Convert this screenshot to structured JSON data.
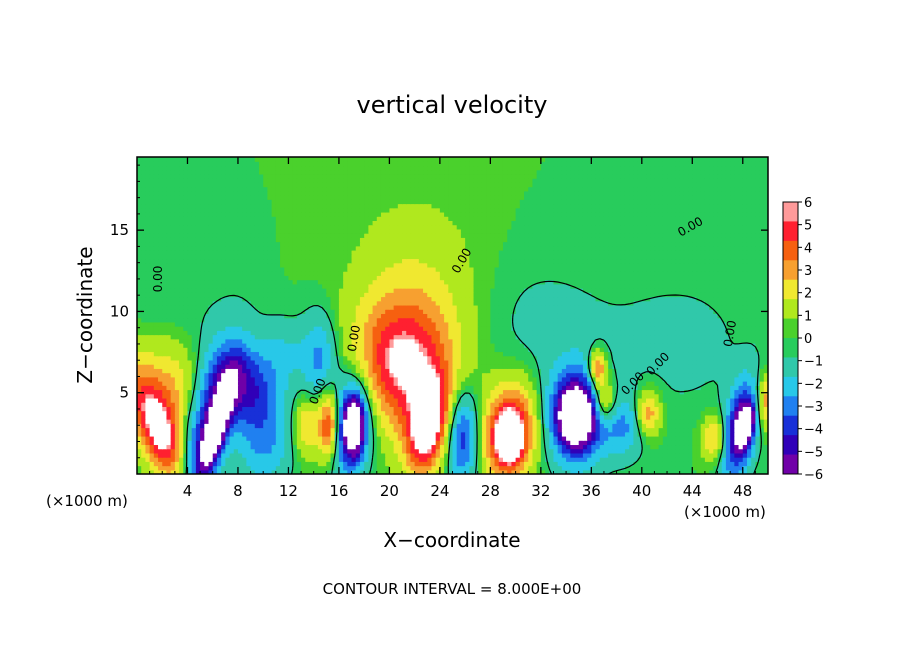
{
  "chart_data": {
    "type": "heatmap",
    "title": "vertical velocity",
    "xlabel": "X−coordinate",
    "ylabel": "Z−coordinate",
    "x_unit_left": "(×1000 m)",
    "x_unit_right": "(×1000 m)",
    "footer": "CONTOUR INTERVAL = 8.000E+00",
    "xlim": [
      0,
      50
    ],
    "ylim": [
      0,
      19.5
    ],
    "x_ticks": [
      "4",
      "8",
      "12",
      "16",
      "20",
      "24",
      "28",
      "32",
      "36",
      "40",
      "44",
      "48"
    ],
    "y_ticks": [
      "5",
      "10",
      "15"
    ],
    "colorbar_range": [
      -6,
      6
    ],
    "colorbar_ticks": [
      "6",
      "5",
      "4",
      "3",
      "2",
      "1",
      "0",
      "−1",
      "−2",
      "−3",
      "−4",
      "−5",
      "−6"
    ],
    "colorbar_colors": [
      "#ff9a9a",
      "#ff2030",
      "#f66010",
      "#f7a030",
      "#f0e830",
      "#b0e81e",
      "#4ad12c",
      "#28cc5c",
      "#30c8aa",
      "#28c8e8",
      "#2080f0",
      "#1830d8",
      "#3000b8",
      "#7000a8"
    ],
    "background_value": 0.5,
    "contour_labels": [
      "0.00",
      "0.00",
      "0.00",
      "0.00",
      "0.00",
      "0.00",
      "0.00",
      "0.00"
    ],
    "cells": [
      {
        "x": 1.8,
        "z": 2.6,
        "value": 6.2,
        "sx": 1.2,
        "sz": 2.4,
        "tilt": -0.45
      },
      {
        "x": 3.0,
        "z": 5.0,
        "value": 2.8,
        "sx": 2.2,
        "sz": 2.5,
        "tilt": -0.3
      },
      {
        "x": 5.5,
        "z": 3.2,
        "value": -5.5,
        "sx": 1.4,
        "sz": 3.4,
        "tilt": 0.3
      },
      {
        "x": 6.3,
        "z": 3.0,
        "value": -7.5,
        "sx": 0.6,
        "sz": 2.2,
        "tilt": 0.35
      },
      {
        "x": 8.5,
        "z": 5.5,
        "value": -3.5,
        "sx": 1.5,
        "sz": 1.5,
        "tilt": 0
      },
      {
        "x": 10.0,
        "z": 2.6,
        "value": -3.0,
        "sx": 1.6,
        "sz": 2.2,
        "tilt": 0
      },
      {
        "x": 13.4,
        "z": 3.0,
        "value": 2.8,
        "sx": 0.7,
        "sz": 1.3,
        "tilt": 0
      },
      {
        "x": 15.2,
        "z": 3.0,
        "value": 5.5,
        "sx": 0.6,
        "sz": 1.5,
        "tilt": 0
      },
      {
        "x": 17.0,
        "z": 3.0,
        "value": -6.0,
        "sx": 1.1,
        "sz": 2.2,
        "tilt": 0.1
      },
      {
        "x": 17.2,
        "z": 3.0,
        "value": -7.0,
        "sx": 0.5,
        "sz": 1.1,
        "tilt": 0
      },
      {
        "x": 14.5,
        "z": 7.0,
        "value": -2.8,
        "sx": 1.0,
        "sz": 2.0,
        "tilt": 0
      },
      {
        "x": 21.0,
        "z": 6.8,
        "value": 5.0,
        "sx": 2.5,
        "sz": 2.6,
        "tilt": 0
      },
      {
        "x": 22.0,
        "z": 9.5,
        "value": 1.8,
        "sx": 3.5,
        "sz": 4.5,
        "tilt": 0
      },
      {
        "x": 23.0,
        "z": 3.0,
        "value": 7.0,
        "sx": 1.1,
        "sz": 2.0,
        "tilt": 0.15
      },
      {
        "x": 25.8,
        "z": 2.3,
        "value": -4.5,
        "sx": 0.9,
        "sz": 2.0,
        "tilt": 0
      },
      {
        "x": 29.5,
        "z": 2.6,
        "value": 6.5,
        "sx": 1.4,
        "sz": 2.0,
        "tilt": 0.1
      },
      {
        "x": 29.5,
        "z": 2.2,
        "value": 7.5,
        "sx": 0.6,
        "sz": 0.9,
        "tilt": 0
      },
      {
        "x": 34.8,
        "z": 3.6,
        "value": -7.0,
        "sx": 1.5,
        "sz": 2.0,
        "tilt": 0
      },
      {
        "x": 34.8,
        "z": 3.6,
        "value": -8.0,
        "sx": 0.8,
        "sz": 1.0,
        "tilt": 0
      },
      {
        "x": 37.0,
        "z": 4.5,
        "value": 4.0,
        "sx": 0.7,
        "sz": 1.0,
        "tilt": 0
      },
      {
        "x": 36.5,
        "z": 6.5,
        "value": 4.5,
        "sx": 0.5,
        "sz": 0.8,
        "tilt": 0
      },
      {
        "x": 40.5,
        "z": 3.8,
        "value": 3.5,
        "sx": 0.7,
        "sz": 1.0,
        "tilt": 0
      },
      {
        "x": 38.5,
        "z": 3.0,
        "value": -2.5,
        "sx": 1.2,
        "sz": 1.4,
        "tilt": 0
      },
      {
        "x": 45.8,
        "z": 2.2,
        "value": 3.2,
        "sx": 0.7,
        "sz": 1.0,
        "tilt": 0
      },
      {
        "x": 47.8,
        "z": 2.8,
        "value": -6.5,
        "sx": 0.9,
        "sz": 2.0,
        "tilt": 0.2
      },
      {
        "x": 48.2,
        "z": 3.0,
        "value": -8.0,
        "sx": 0.4,
        "sz": 0.8,
        "tilt": 0.2
      },
      {
        "x": 49.8,
        "z": 4.5,
        "value": 3.5,
        "sx": 0.6,
        "sz": 1.2,
        "tilt": 0
      },
      {
        "x": 11.5,
        "z": 7.5,
        "value": -1.5,
        "sx": 1.5,
        "sz": 1.5,
        "tilt": 0
      },
      {
        "x": 32.0,
        "z": 9.0,
        "value": -0.8,
        "sx": 4.0,
        "sz": 3.0,
        "tilt": 0
      },
      {
        "x": 43.0,
        "z": 8.0,
        "value": -0.8,
        "sx": 4.0,
        "sz": 3.0,
        "tilt": 0
      },
      {
        "x": 2.0,
        "z": 10.0,
        "value": -0.6,
        "sx": 3.0,
        "sz": 3.0,
        "tilt": 0
      }
    ]
  }
}
